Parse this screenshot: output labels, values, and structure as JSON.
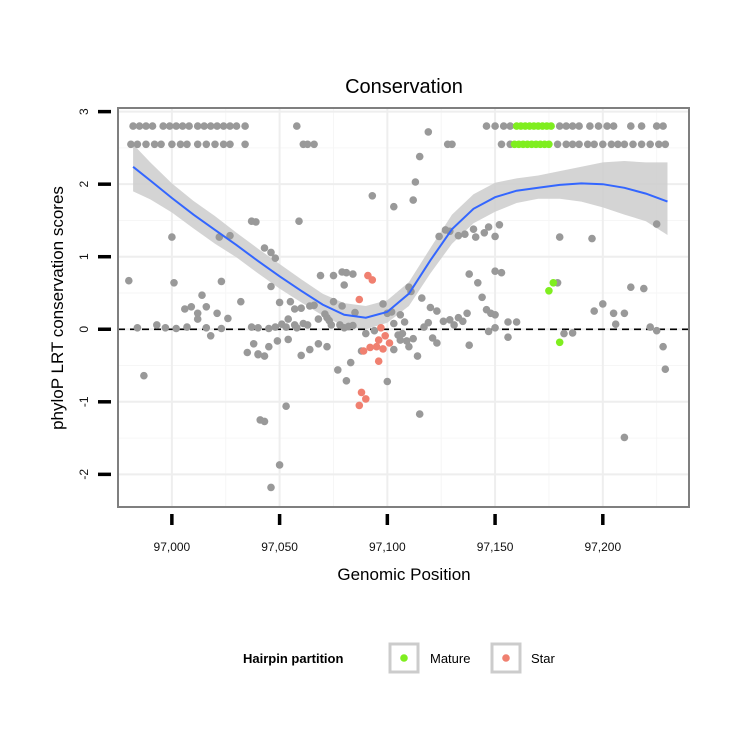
{
  "chart_data": {
    "type": "scatter",
    "title": "Conservation",
    "xlabel": "Genomic Position",
    "ylabel": "phyloP LRT conservation scores",
    "xlim": [
      96975,
      97240
    ],
    "ylim": [
      -2.45,
      3.05
    ],
    "x_ticks": [
      97000,
      97050,
      97100,
      97150,
      97200
    ],
    "x_tick_labels": [
      "97,000",
      "97,050",
      "97,100",
      "97,150",
      "97,200"
    ],
    "y_ticks": [
      -2,
      -1,
      0,
      1,
      2,
      3
    ],
    "y_tick_labels": [
      "-2",
      "-1",
      "0",
      "1",
      "2",
      "3"
    ],
    "reference_line": {
      "y": 0,
      "style": "dashed"
    },
    "legend": {
      "title": "Hairpin partition",
      "entries": [
        {
          "label": "Mature",
          "color": "#7FEE1F"
        },
        {
          "label": "Star",
          "color": "#F08070"
        }
      ]
    },
    "colors": {
      "other": "#999999",
      "Mature": "#7FEE1F",
      "Star": "#F08070",
      "smooth": "#3366FF",
      "band": "#CCCCCC"
    },
    "series": [
      {
        "name": "Other",
        "points": [
          [
            96982,
            2.8
          ],
          [
            96985,
            2.8
          ],
          [
            96988,
            2.8
          ],
          [
            96991,
            2.8
          ],
          [
            96996,
            2.8
          ],
          [
            96999,
            2.8
          ],
          [
            97002,
            2.8
          ],
          [
            97005,
            2.8
          ],
          [
            97008,
            2.8
          ],
          [
            97012,
            2.8
          ],
          [
            97015,
            2.8
          ],
          [
            97018,
            2.8
          ],
          [
            97021,
            2.8
          ],
          [
            97024,
            2.8
          ],
          [
            97027,
            2.8
          ],
          [
            97030,
            2.8
          ],
          [
            97034,
            2.8
          ],
          [
            97058,
            2.8
          ],
          [
            96981,
            2.55
          ],
          [
            96984,
            2.55
          ],
          [
            96988,
            2.55
          ],
          [
            96992,
            2.55
          ],
          [
            96995,
            2.55
          ],
          [
            97000,
            2.55
          ],
          [
            97004,
            2.55
          ],
          [
            97007,
            2.55
          ],
          [
            97012,
            2.55
          ],
          [
            97016,
            2.55
          ],
          [
            97020,
            2.55
          ],
          [
            97024,
            2.55
          ],
          [
            97027,
            2.55
          ],
          [
            97034,
            2.55
          ],
          [
            97061,
            2.55
          ],
          [
            97063,
            2.55
          ],
          [
            97066,
            2.55
          ],
          [
            97128,
            2.55
          ],
          [
            97130,
            2.55
          ],
          [
            97146,
            2.8
          ],
          [
            97150,
            2.8
          ],
          [
            97154,
            2.8
          ],
          [
            97157,
            2.8
          ],
          [
            97180,
            2.8
          ],
          [
            97183,
            2.8
          ],
          [
            97186,
            2.8
          ],
          [
            97189,
            2.8
          ],
          [
            97194,
            2.8
          ],
          [
            97198,
            2.8
          ],
          [
            97202,
            2.8
          ],
          [
            97205,
            2.8
          ],
          [
            97213,
            2.8
          ],
          [
            97218,
            2.8
          ],
          [
            97225,
            2.8
          ],
          [
            97228,
            2.8
          ],
          [
            97153,
            2.55
          ],
          [
            97157,
            2.55
          ],
          [
            97179,
            2.55
          ],
          [
            97183,
            2.55
          ],
          [
            97186,
            2.55
          ],
          [
            97189,
            2.55
          ],
          [
            97193,
            2.55
          ],
          [
            97196,
            2.55
          ],
          [
            97200,
            2.55
          ],
          [
            97204,
            2.55
          ],
          [
            97207,
            2.55
          ],
          [
            97210,
            2.55
          ],
          [
            97214,
            2.55
          ],
          [
            97218,
            2.55
          ],
          [
            97222,
            2.55
          ],
          [
            97226,
            2.55
          ],
          [
            97229,
            2.55
          ],
          [
            97119,
            2.72
          ],
          [
            97115,
            2.38
          ],
          [
            97113,
            2.03
          ],
          [
            97112,
            1.78
          ],
          [
            97103,
            1.69
          ],
          [
            97093,
            1.84
          ],
          [
            97059,
            1.49
          ],
          [
            97037,
            1.49
          ],
          [
            97039,
            1.48
          ],
          [
            97027,
            1.29
          ],
          [
            97022,
            1.27
          ],
          [
            97000,
            1.27
          ],
          [
            97124,
            1.28
          ],
          [
            97127,
            1.37
          ],
          [
            97129,
            1.35
          ],
          [
            97133,
            1.29
          ],
          [
            97136,
            1.31
          ],
          [
            97140,
            1.38
          ],
          [
            97141,
            1.27
          ],
          [
            97145,
            1.33
          ],
          [
            97147,
            1.41
          ],
          [
            97150,
            1.28
          ],
          [
            97152,
            1.44
          ],
          [
            97180,
            1.27
          ],
          [
            97195,
            1.25
          ],
          [
            97225,
            1.45
          ],
          [
            96980,
            0.67
          ],
          [
            97001,
            0.64
          ],
          [
            97014,
            0.47
          ],
          [
            97023,
            0.66
          ],
          [
            97069,
            0.74
          ],
          [
            97075,
            0.74
          ],
          [
            97079,
            0.79
          ],
          [
            97081,
            0.78
          ],
          [
            97080,
            0.61
          ],
          [
            97084,
            0.76
          ],
          [
            97043,
            1.12
          ],
          [
            97046,
            1.06
          ],
          [
            97048,
            0.98
          ],
          [
            97046,
            0.59
          ],
          [
            97050,
            0.37
          ],
          [
            97055,
            0.38
          ],
          [
            97057,
            0.28
          ],
          [
            97060,
            0.29
          ],
          [
            97064,
            0.32
          ],
          [
            97066,
            0.33
          ],
          [
            97071,
            0.21
          ],
          [
            97073,
            0.12
          ],
          [
            97075,
            0.38
          ],
          [
            97079,
            0.32
          ],
          [
            97085,
            0.23
          ],
          [
            97006,
            0.28
          ],
          [
            97009,
            0.31
          ],
          [
            97012,
            0.22
          ],
          [
            97016,
            0.31
          ],
          [
            97021,
            0.22
          ],
          [
            97026,
            0.15
          ],
          [
            97032,
            0.38
          ],
          [
            97054,
            0.14
          ],
          [
            97057,
            0.06
          ],
          [
            97058,
            0.02
          ],
          [
            97061,
            0.08
          ],
          [
            97063,
            0.06
          ],
          [
            97068,
            0.14
          ],
          [
            97072,
            0.16
          ],
          [
            97074,
            0.06
          ],
          [
            97078,
            0.06
          ],
          [
            97080,
            0.02
          ],
          [
            97082,
            0.04
          ],
          [
            97084,
            0.05
          ],
          [
            97090,
            -0.06
          ],
          [
            97094,
            -0.02
          ],
          [
            96984,
            0.02
          ],
          [
            96993,
            0.06
          ],
          [
            96997,
            0.02
          ],
          [
            97002,
            0.01
          ],
          [
            97007,
            0.03
          ],
          [
            97012,
            0.14
          ],
          [
            97016,
            0.02
          ],
          [
            97018,
            -0.09
          ],
          [
            97023,
            0.01
          ],
          [
            97037,
            0.03
          ],
          [
            97040,
            0.02
          ],
          [
            97045,
            0.01
          ],
          [
            97048,
            0.03
          ],
          [
            97051,
            0.07
          ],
          [
            97053,
            0.03
          ],
          [
            97098,
            0.35
          ],
          [
            97100,
            0.22
          ],
          [
            97102,
            0.24
          ],
          [
            97106,
            0.2
          ],
          [
            97108,
            0.1
          ],
          [
            97110,
            0.58
          ],
          [
            97111,
            0.52
          ],
          [
            97116,
            0.43
          ],
          [
            97120,
            0.3
          ],
          [
            97119,
            0.09
          ],
          [
            97123,
            0.25
          ],
          [
            97126,
            0.11
          ],
          [
            97129,
            0.13
          ],
          [
            97131,
            0.06
          ],
          [
            97133,
            0.16
          ],
          [
            97135,
            0.11
          ],
          [
            97137,
            0.22
          ],
          [
            97142,
            0.64
          ],
          [
            97144,
            0.44
          ],
          [
            97146,
            0.27
          ],
          [
            97148,
            0.22
          ],
          [
            97150,
            0.2
          ],
          [
            97156,
            0.1
          ],
          [
            97103,
            0.08
          ],
          [
            97105,
            -0.08
          ],
          [
            97107,
            -0.06
          ],
          [
            97109,
            -0.16
          ],
          [
            97112,
            -0.13
          ],
          [
            97117,
            0.03
          ],
          [
            97121,
            -0.12
          ],
          [
            97123,
            -0.19
          ],
          [
            97138,
            -0.22
          ],
          [
            97147,
            -0.03
          ],
          [
            97150,
            0.02
          ],
          [
            97156,
            -0.11
          ],
          [
            97160,
            0.1
          ],
          [
            97150,
            0.8
          ],
          [
            97153,
            0.78
          ],
          [
            97138,
            0.76
          ],
          [
            97179,
            0.64
          ],
          [
            97196,
            0.25
          ],
          [
            97200,
            0.35
          ],
          [
            97205,
            0.22
          ],
          [
            97213,
            0.58
          ],
          [
            97219,
            0.56
          ],
          [
            97222,
            0.03
          ],
          [
            97225,
            -0.02
          ],
          [
            97228,
            -0.24
          ],
          [
            97229,
            -0.55
          ],
          [
            97182,
            -0.06
          ],
          [
            97186,
            -0.05
          ],
          [
            97210,
            0.22
          ],
          [
            97206,
            0.07
          ],
          [
            97035,
            -0.32
          ],
          [
            97038,
            -0.2
          ],
          [
            97040,
            -0.34
          ],
          [
            97043,
            -0.37
          ],
          [
            97045,
            -0.24
          ],
          [
            97049,
            -0.16
          ],
          [
            97054,
            -0.14
          ],
          [
            97060,
            -0.36
          ],
          [
            97064,
            -0.28
          ],
          [
            97068,
            -0.2
          ],
          [
            97072,
            -0.24
          ],
          [
            97077,
            -0.56
          ],
          [
            97081,
            -0.71
          ],
          [
            97083,
            -0.46
          ],
          [
            97088,
            -0.3
          ],
          [
            97100,
            -0.72
          ],
          [
            97103,
            -0.28
          ],
          [
            97106,
            -0.15
          ],
          [
            97110,
            -0.24
          ],
          [
            97114,
            -0.37
          ],
          [
            96987,
            -0.64
          ],
          [
            97040,
            -0.35
          ],
          [
            97041,
            -1.25
          ],
          [
            97043,
            -1.27
          ],
          [
            97053,
            -1.06
          ],
          [
            97050,
            -1.87
          ],
          [
            97046,
            -2.18
          ],
          [
            97115,
            -1.17
          ],
          [
            97210,
            -1.49
          ]
        ]
      },
      {
        "name": "Mature",
        "points": [
          [
            97160,
            2.8
          ],
          [
            97162,
            2.8
          ],
          [
            97164,
            2.8
          ],
          [
            97166,
            2.8
          ],
          [
            97168,
            2.8
          ],
          [
            97170,
            2.8
          ],
          [
            97172,
            2.8
          ],
          [
            97174,
            2.8
          ],
          [
            97176,
            2.8
          ],
          [
            97159,
            2.55
          ],
          [
            97161,
            2.55
          ],
          [
            97163,
            2.55
          ],
          [
            97165,
            2.55
          ],
          [
            97167,
            2.55
          ],
          [
            97169,
            2.55
          ],
          [
            97171,
            2.55
          ],
          [
            97173,
            2.55
          ],
          [
            97175,
            2.55
          ],
          [
            97177,
            0.64
          ],
          [
            97175,
            0.53
          ],
          [
            97180,
            -0.18
          ]
        ]
      },
      {
        "name": "Star",
        "points": [
          [
            97091,
            0.74
          ],
          [
            97093,
            0.68
          ],
          [
            97087,
            0.41
          ],
          [
            97097,
            0.02
          ],
          [
            97099,
            -0.09
          ],
          [
            97096,
            -0.15
          ],
          [
            97089,
            -0.3
          ],
          [
            97092,
            -0.25
          ],
          [
            97095,
            -0.24
          ],
          [
            97098,
            -0.27
          ],
          [
            97101,
            -0.19
          ],
          [
            97096,
            -0.44
          ],
          [
            97088,
            -0.87
          ],
          [
            97087,
            -1.05
          ],
          [
            97090,
            -0.96
          ]
        ]
      }
    ],
    "smooth_curve": {
      "x": [
        96982,
        96990,
        97000,
        97010,
        97020,
        97030,
        97040,
        97050,
        97060,
        97070,
        97080,
        97090,
        97100,
        97110,
        97120,
        97130,
        97140,
        97150,
        97160,
        97170,
        97180,
        97190,
        97200,
        97210,
        97220,
        97230
      ],
      "y": [
        2.24,
        2.05,
        1.81,
        1.58,
        1.37,
        1.16,
        0.94,
        0.73,
        0.53,
        0.34,
        0.2,
        0.16,
        0.24,
        0.49,
        0.95,
        1.38,
        1.66,
        1.82,
        1.91,
        1.95,
        1.99,
        2.01,
        2.0,
        1.95,
        1.87,
        1.76
      ],
      "lower": [
        1.9,
        1.79,
        1.61,
        1.39,
        1.18,
        0.99,
        0.77,
        0.56,
        0.37,
        0.19,
        0.04,
        0.0,
        0.09,
        0.32,
        0.77,
        1.18,
        1.46,
        1.62,
        1.74,
        1.8,
        1.8,
        1.76,
        1.68,
        1.58,
        1.49,
        1.3
      ],
      "upper": [
        2.55,
        2.3,
        2.01,
        1.77,
        1.56,
        1.33,
        1.11,
        0.9,
        0.69,
        0.49,
        0.36,
        0.32,
        0.4,
        0.65,
        1.12,
        1.58,
        1.86,
        2.02,
        2.08,
        2.12,
        2.18,
        2.24,
        2.3,
        2.32,
        2.3,
        2.3
      ]
    }
  }
}
